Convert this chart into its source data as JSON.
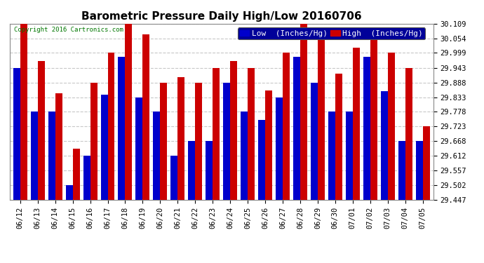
{
  "title": "Barometric Pressure Daily High/Low 20160706",
  "copyright": "Copyright 2016 Cartronics.com",
  "ylabel_low": "Low  (Inches/Hg)",
  "ylabel_high": "High  (Inches/Hg)",
  "ymin": 29.447,
  "ymax": 30.109,
  "yticks": [
    29.447,
    29.502,
    29.557,
    29.612,
    29.668,
    29.723,
    29.778,
    29.833,
    29.888,
    29.943,
    29.999,
    30.054,
    30.109
  ],
  "dates": [
    "06/12",
    "06/13",
    "06/14",
    "06/15",
    "06/16",
    "06/17",
    "06/18",
    "06/19",
    "06/20",
    "06/21",
    "06/22",
    "06/23",
    "06/24",
    "06/25",
    "06/26",
    "06/27",
    "06/28",
    "06/29",
    "06/30",
    "07/01",
    "07/02",
    "07/03",
    "07/04",
    "07/05"
  ],
  "lows": [
    29.943,
    29.778,
    29.778,
    29.502,
    29.613,
    29.843,
    29.985,
    29.833,
    29.778,
    29.613,
    29.668,
    29.668,
    29.888,
    29.778,
    29.748,
    29.833,
    29.985,
    29.888,
    29.778,
    29.778,
    29.985,
    29.855,
    29.668,
    29.668
  ],
  "highs": [
    30.109,
    29.97,
    29.848,
    29.64,
    29.888,
    29.999,
    30.109,
    30.07,
    29.888,
    29.908,
    29.888,
    29.943,
    29.97,
    29.943,
    29.858,
    29.999,
    30.109,
    30.054,
    29.92,
    30.02,
    30.054,
    29.999,
    29.943,
    29.723
  ],
  "low_color": "#0000cc",
  "high_color": "#cc0000",
  "bg_color": "#ffffff",
  "grid_color": "#c8c8c8",
  "bar_width": 0.4,
  "title_fontsize": 11,
  "tick_fontsize": 7.5,
  "legend_fontsize": 8
}
